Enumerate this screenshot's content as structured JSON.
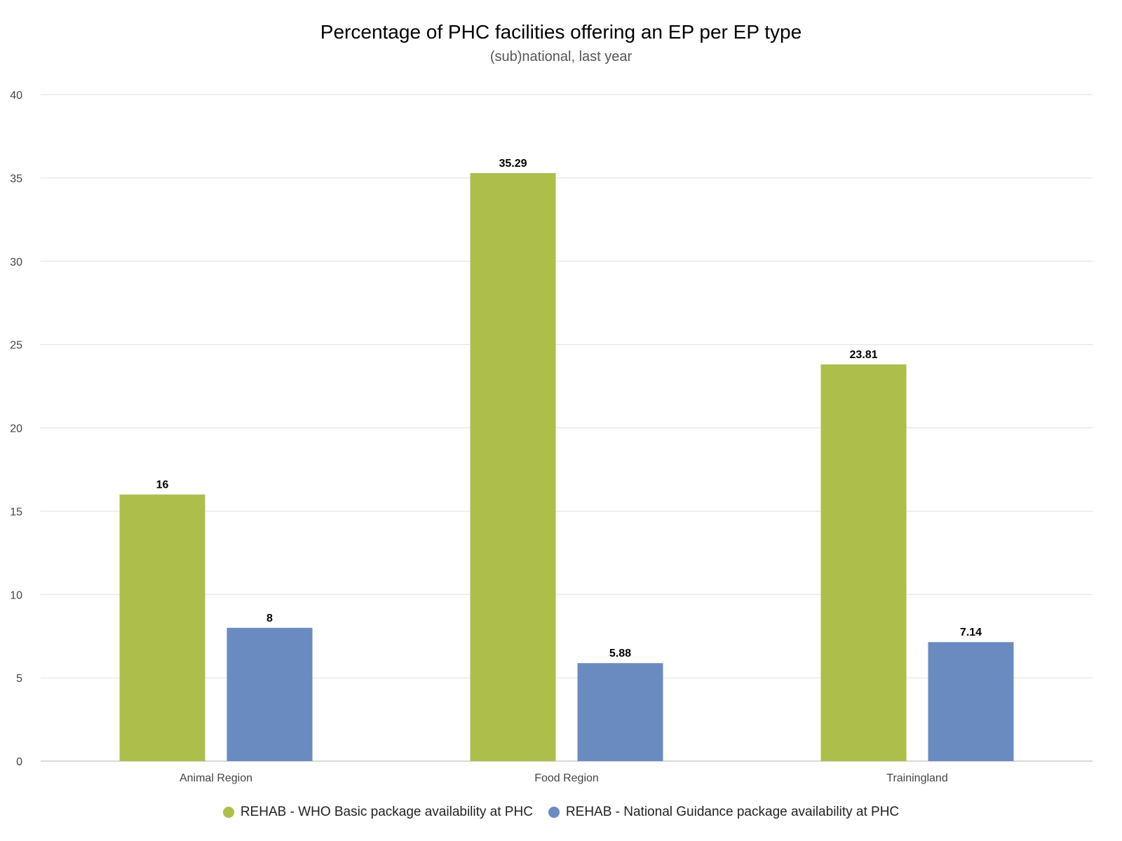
{
  "chart_data": {
    "type": "bar",
    "title": "Percentage of PHC facilities offering an EP per EP type",
    "subtitle": "(sub)national, last year",
    "xlabel": "",
    "ylabel": "",
    "categories": [
      "Animal Region",
      "Food Region",
      "Trainingland"
    ],
    "ylim": [
      0,
      40
    ],
    "yticks": [
      0,
      5,
      10,
      15,
      20,
      25,
      30,
      35,
      40
    ],
    "grid": true,
    "legend_position": "bottom",
    "series": [
      {
        "name": "REHAB - WHO Basic package availability at PHC",
        "color": "#aebe4b",
        "values": [
          16,
          35.29,
          23.81
        ],
        "labels": [
          "16",
          "35.29",
          "23.81"
        ]
      },
      {
        "name": "REHAB - National Guidance package availability at PHC",
        "color": "#6a8bbf",
        "values": [
          8,
          5.88,
          7.14
        ],
        "labels": [
          "8",
          "5.88",
          "7.14"
        ]
      }
    ]
  }
}
